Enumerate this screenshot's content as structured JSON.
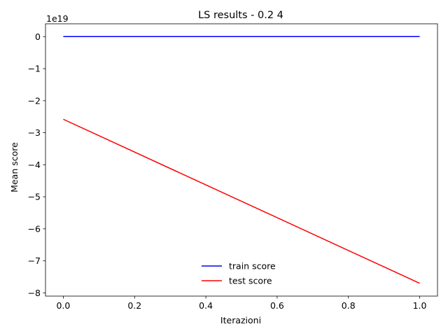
{
  "chart_data": {
    "type": "line",
    "title": "LS results - 0.2 4",
    "xlabel": "Iterazioni",
    "ylabel": "Mean score",
    "y_offset_label": "1e19",
    "y_scale_factor": 1e+19,
    "xlim": [
      -0.05,
      1.05
    ],
    "ylim": [
      -8.1,
      0.4
    ],
    "x_ticks": [
      0.0,
      0.2,
      0.4,
      0.6,
      0.8,
      1.0
    ],
    "x_tick_labels": [
      "0.0",
      "0.2",
      "0.4",
      "0.6",
      "0.8",
      "1.0"
    ],
    "y_ticks": [
      0,
      -1,
      -2,
      -3,
      -4,
      -5,
      -6,
      -7,
      -8
    ],
    "y_tick_labels": [
      "0",
      "−1",
      "−2",
      "−3",
      "−4",
      "−5",
      "−6",
      "−7",
      "−8"
    ],
    "grid": false,
    "legend_placement": "lower center",
    "series": [
      {
        "name": "train score",
        "color": "#0000ff",
        "x": [
          0,
          1
        ],
        "y": [
          0,
          0
        ]
      },
      {
        "name": "test score",
        "color": "#ff0000",
        "x": [
          0,
          1
        ],
        "y": [
          -2.58,
          -7.7
        ]
      }
    ]
  }
}
